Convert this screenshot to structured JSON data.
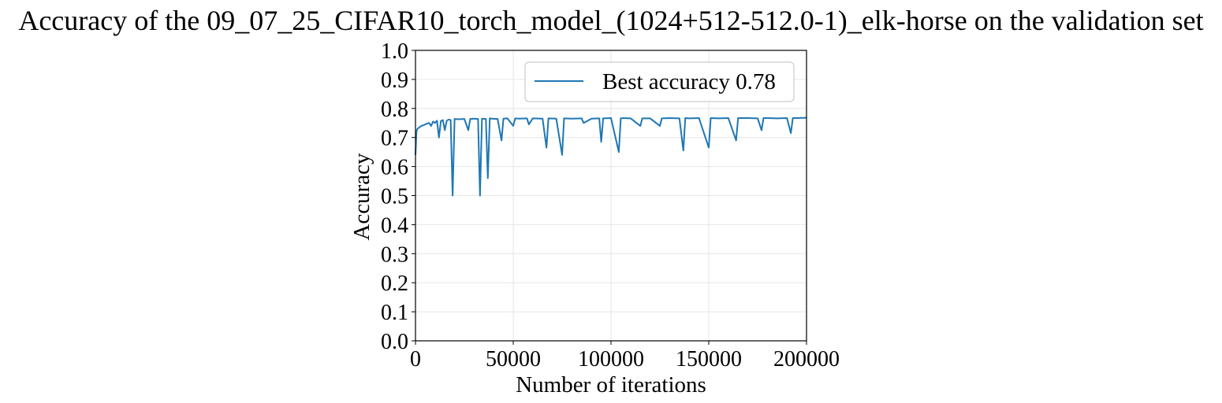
{
  "chart_data": {
    "type": "line",
    "title": "Accuracy of the 09_07_25_CIFAR10_torch_model_(1024+512-512.0-1)_elk-horse on the validation set",
    "xlabel": "Number of iterations",
    "ylabel": "Accuracy",
    "xlim": [
      0,
      200000
    ],
    "ylim": [
      0.0,
      1.0
    ],
    "x_ticks": [
      0,
      50000,
      100000,
      150000,
      200000
    ],
    "x_tick_labels": [
      "0",
      "50000",
      "100000",
      "150000",
      "200000"
    ],
    "y_ticks": [
      0.0,
      0.1,
      0.2,
      0.3,
      0.4,
      0.5,
      0.6,
      0.7,
      0.8,
      0.9,
      1.0
    ],
    "y_tick_labels": [
      "0.0",
      "0.1",
      "0.2",
      "0.3",
      "0.4",
      "0.5",
      "0.6",
      "0.7",
      "0.8",
      "0.9",
      "1.0"
    ],
    "grid": true,
    "legend_position": "top-right",
    "series": [
      {
        "name": "Best accuracy 0.78",
        "color": "#1f77b4",
        "x": [
          0,
          500,
          1000,
          2000,
          3000,
          4000,
          5000,
          6000,
          7000,
          8000,
          9000,
          10000,
          11000,
          12000,
          13000,
          14000,
          15000,
          16000,
          17000,
          18000,
          19000,
          20000,
          22000,
          25000,
          27000,
          28000,
          30000,
          32000,
          33000,
          34000,
          36000,
          37000,
          38000,
          39000,
          42000,
          44000,
          45000,
          47000,
          50000,
          51000,
          53000,
          57000,
          58000,
          60000,
          65000,
          67000,
          68000,
          72000,
          75000,
          76000,
          80000,
          85000,
          86000,
          90000,
          94000,
          95000,
          96000,
          100000,
          104000,
          105000,
          106000,
          110000,
          115000,
          116000,
          120000,
          125000,
          126000,
          130000,
          135000,
          137000,
          138000,
          140000,
          145000,
          150000,
          151000,
          155000,
          160000,
          164000,
          165000,
          170000,
          175000,
          177000,
          178000,
          180000,
          185000,
          190000,
          192000,
          193000,
          195000,
          200000
        ],
        "values": [
          0.64,
          0.72,
          0.73,
          0.735,
          0.74,
          0.742,
          0.745,
          0.748,
          0.75,
          0.74,
          0.755,
          0.75,
          0.758,
          0.7,
          0.757,
          0.76,
          0.725,
          0.758,
          0.762,
          0.76,
          0.5,
          0.764,
          0.763,
          0.764,
          0.725,
          0.764,
          0.765,
          0.764,
          0.5,
          0.765,
          0.764,
          0.56,
          0.766,
          0.765,
          0.764,
          0.69,
          0.765,
          0.766,
          0.74,
          0.766,
          0.765,
          0.766,
          0.745,
          0.766,
          0.765,
          0.665,
          0.766,
          0.765,
          0.64,
          0.766,
          0.765,
          0.766,
          0.75,
          0.765,
          0.766,
          0.685,
          0.766,
          0.767,
          0.65,
          0.766,
          0.767,
          0.766,
          0.74,
          0.766,
          0.766,
          0.74,
          0.766,
          0.767,
          0.766,
          0.655,
          0.767,
          0.766,
          0.767,
          0.665,
          0.767,
          0.766,
          0.767,
          0.69,
          0.767,
          0.767,
          0.766,
          0.725,
          0.767,
          0.767,
          0.766,
          0.767,
          0.715,
          0.767,
          0.767,
          0.768
        ]
      }
    ]
  }
}
